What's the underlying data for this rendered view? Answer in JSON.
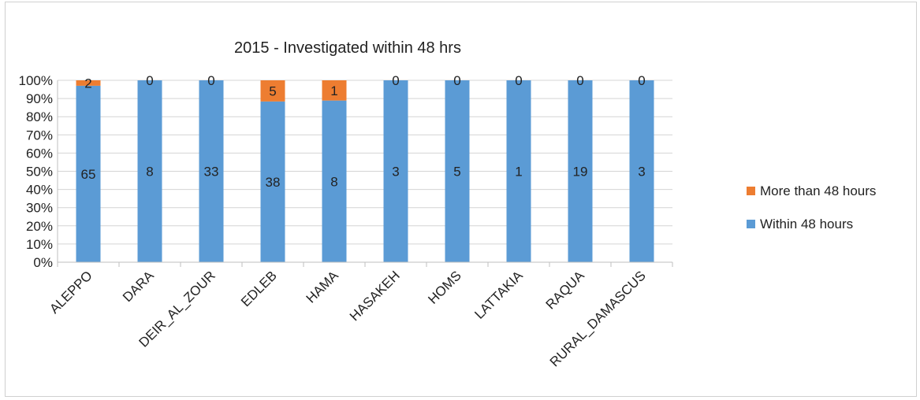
{
  "chart_data": {
    "type": "bar",
    "stacked": "percent",
    "title": "2015 - Investigated within 48 hrs",
    "xlabel": "",
    "ylabel": "",
    "categories": [
      "ALEPPO",
      "DARA",
      "DEIR_AL_ZOUR",
      "EDLEB",
      "HAMA",
      "HASAKEH",
      "HOMS",
      "LATTAKIA",
      "RAQUA",
      "RURAL_DAMASCUS"
    ],
    "series": [
      {
        "name": "Within 48 hours",
        "color": "#5b9bd5",
        "values": [
          65,
          8,
          33,
          38,
          8,
          3,
          5,
          1,
          19,
          3
        ]
      },
      {
        "name": "More than 48 hours",
        "color": "#ed7d31",
        "values": [
          2,
          0,
          0,
          5,
          1,
          0,
          0,
          0,
          0,
          0
        ]
      }
    ],
    "y_ticks": [
      "0%",
      "10%",
      "20%",
      "30%",
      "40%",
      "50%",
      "60%",
      "70%",
      "80%",
      "90%",
      "100%"
    ],
    "ylim": [
      0,
      100
    ],
    "grid": true,
    "legend_position": "right",
    "legend_order": [
      "More than 48 hours",
      "Within 48 hours"
    ]
  }
}
